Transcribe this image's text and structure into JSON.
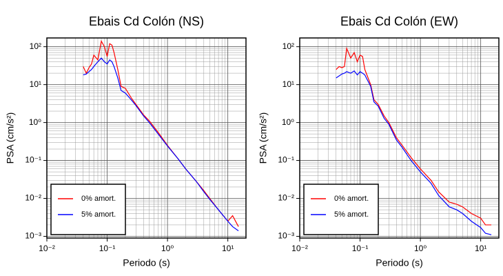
{
  "chart_data": [
    {
      "type": "line",
      "title": "Ebais Cd Colón (NS)",
      "x_label": "Periodo (s)",
      "y_label": "PSA (cm/s²)",
      "log_x": true,
      "log_y": true,
      "grid": true,
      "minor_grid": true,
      "legend": "lower left",
      "xlim": [
        0.01,
        20
      ],
      "ylim": [
        0.0009,
        170
      ],
      "xticks": [
        {
          "value": 0.01,
          "label": "10⁻²"
        },
        {
          "value": 0.1,
          "label": "10⁻¹"
        },
        {
          "value": 1,
          "label": "10⁰"
        },
        {
          "value": 10,
          "label": "10¹"
        }
      ],
      "yticks": [
        {
          "value": 0.001,
          "label": "10⁻³"
        },
        {
          "value": 0.01,
          "label": "10⁻²"
        },
        {
          "value": 0.1,
          "label": "10⁻¹"
        },
        {
          "value": 1,
          "label": "10⁰"
        },
        {
          "value": 10,
          "label": "10¹"
        },
        {
          "value": 100,
          "label": "10²"
        }
      ],
      "x": [
        0.04,
        0.045,
        0.05,
        0.055,
        0.06,
        0.07,
        0.08,
        0.09,
        0.1,
        0.11,
        0.12,
        0.13,
        0.15,
        0.17,
        0.2,
        0.25,
        0.3,
        0.4,
        0.5,
        0.7,
        1,
        1.5,
        2,
        3,
        4,
        5,
        7,
        10,
        12,
        15
      ],
      "series": [
        {
          "name": "0% amort.",
          "color": "#ff0000",
          "values": [
            30,
            20,
            28,
            35,
            60,
            45,
            140,
            100,
            55,
            120,
            110,
            70,
            25,
            9,
            8,
            4.5,
            3,
            1.6,
            1.1,
            0.55,
            0.25,
            0.11,
            0.06,
            0.028,
            0.016,
            0.01,
            0.005,
            0.0025,
            0.0035,
            0.0018
          ]
        },
        {
          "name": "5% amort.",
          "color": "#0000ff",
          "values": [
            18,
            19,
            22,
            25,
            30,
            40,
            50,
            40,
            35,
            45,
            40,
            30,
            15,
            7,
            6,
            4,
            2.8,
            1.5,
            1.0,
            0.5,
            0.24,
            0.11,
            0.06,
            0.028,
            0.015,
            0.0095,
            0.005,
            0.0025,
            0.0018,
            0.0014
          ]
        }
      ]
    },
    {
      "type": "line",
      "title": "Ebais Cd Colón (EW)",
      "x_label": "Periodo (s)",
      "y_label": "PSA (cm/s²)",
      "log_x": true,
      "log_y": true,
      "grid": true,
      "minor_grid": true,
      "legend": "lower left",
      "xlim": [
        0.01,
        20
      ],
      "ylim": [
        0.0009,
        170
      ],
      "xticks": [
        {
          "value": 0.01,
          "label": "10⁻²"
        },
        {
          "value": 0.1,
          "label": "10⁻¹"
        },
        {
          "value": 1,
          "label": "10⁰"
        },
        {
          "value": 10,
          "label": "10¹"
        }
      ],
      "yticks": [
        {
          "value": 0.001,
          "label": "10⁻³"
        },
        {
          "value": 0.01,
          "label": "10⁻²"
        },
        {
          "value": 0.1,
          "label": "10⁻¹"
        },
        {
          "value": 1,
          "label": "10⁰"
        },
        {
          "value": 10,
          "label": "10¹"
        },
        {
          "value": 100,
          "label": "10²"
        }
      ],
      "x": [
        0.04,
        0.045,
        0.05,
        0.055,
        0.06,
        0.07,
        0.08,
        0.09,
        0.1,
        0.11,
        0.12,
        0.13,
        0.15,
        0.17,
        0.2,
        0.25,
        0.3,
        0.4,
        0.5,
        0.7,
        1,
        1.5,
        2,
        3,
        4,
        5,
        7,
        10,
        12,
        15
      ],
      "series": [
        {
          "name": "0% amort.",
          "color": "#ff0000",
          "values": [
            25,
            30,
            28,
            30,
            90,
            50,
            70,
            40,
            60,
            55,
            25,
            18,
            10,
            4,
            3,
            1.5,
            1.0,
            0.4,
            0.25,
            0.12,
            0.06,
            0.03,
            0.015,
            0.008,
            0.007,
            0.006,
            0.004,
            0.003,
            0.002,
            0.002
          ]
        },
        {
          "name": "5% amort.",
          "color": "#0000ff",
          "values": [
            15,
            17,
            19,
            20,
            22,
            20,
            23,
            18,
            22,
            20,
            18,
            14,
            9,
            3.5,
            2.7,
            1.3,
            0.9,
            0.35,
            0.22,
            0.1,
            0.05,
            0.025,
            0.012,
            0.006,
            0.005,
            0.004,
            0.0025,
            0.0017,
            0.0012,
            0.0011
          ]
        }
      ]
    }
  ]
}
